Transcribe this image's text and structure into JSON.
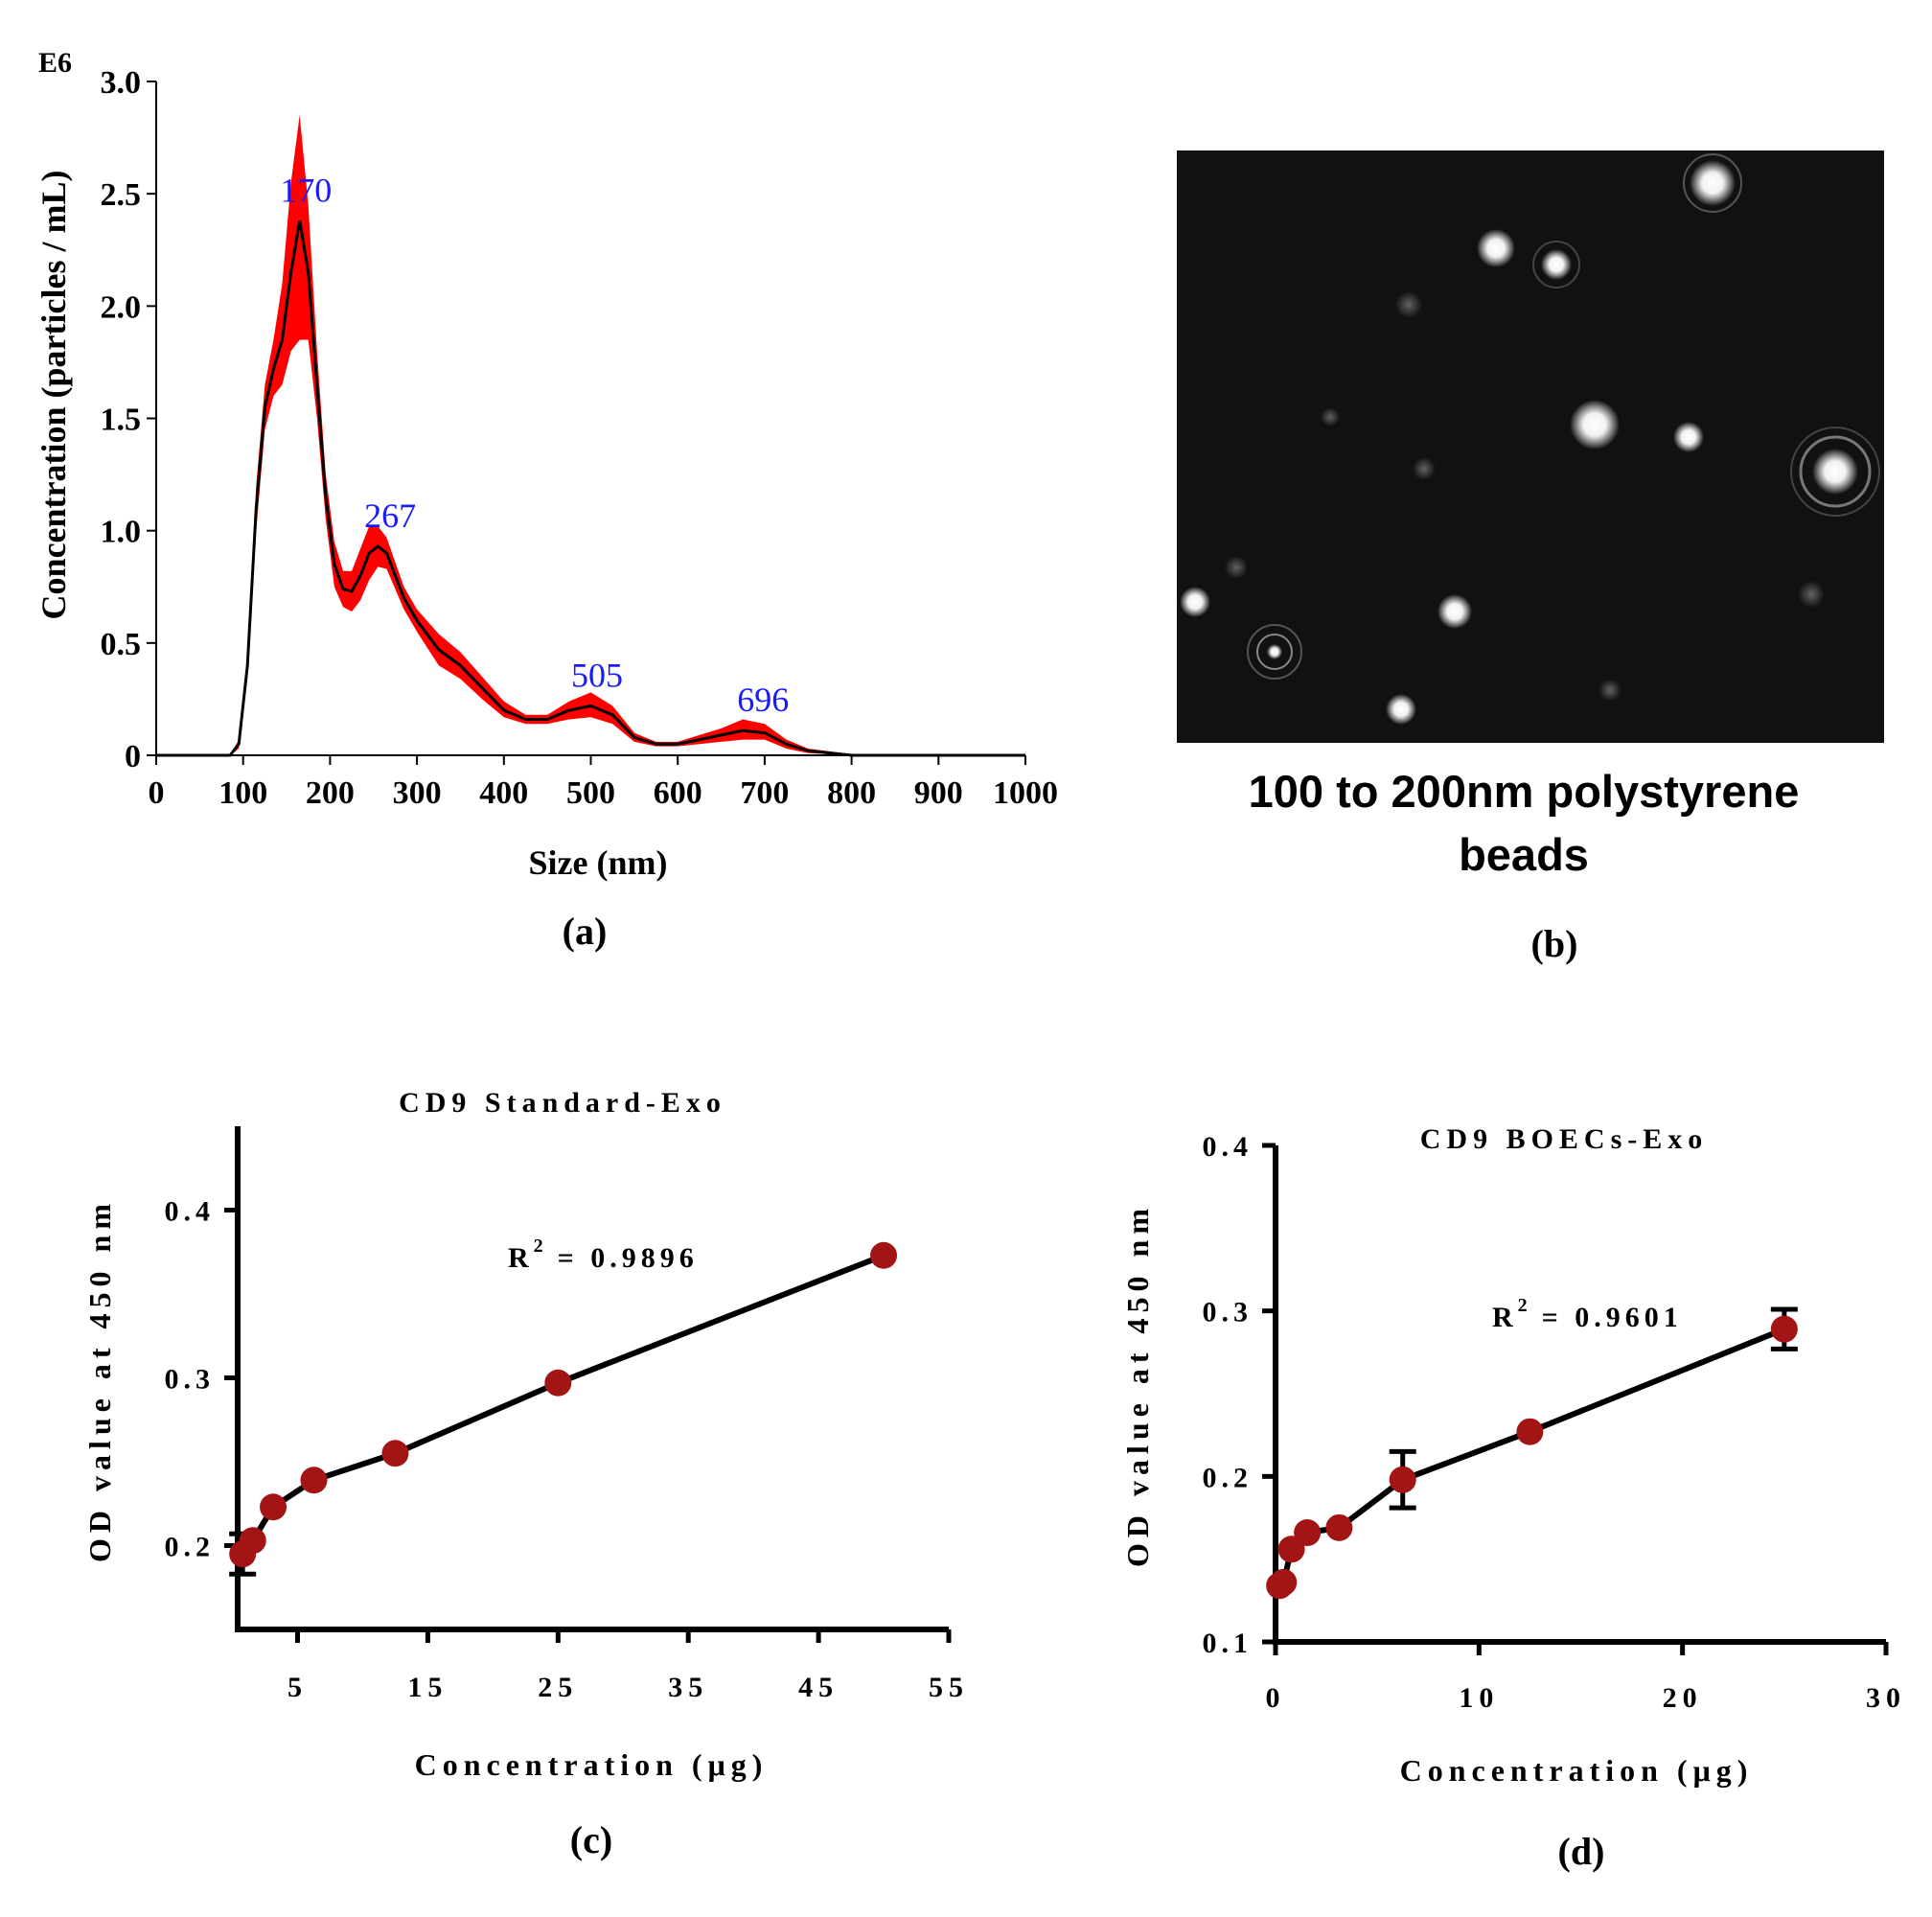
{
  "panel_a": {
    "caption": "(a)",
    "chart_data": {
      "type": "area",
      "x_tick_labels": [
        "0",
        "100",
        "200",
        "300",
        "400",
        "500",
        "600",
        "700",
        "800",
        "900",
        "1000"
      ],
      "y_tick_labels": [
        "0",
        "0.5",
        "1.0",
        "1.5",
        "2.0",
        "2.5",
        "3.0"
      ],
      "y_multiplier": "E6",
      "xlabel": "Size (nm)",
      "ylabel": "Concentration (particles / mL)",
      "xlim": [
        0,
        1000
      ],
      "ylim": [
        0,
        3.0
      ],
      "peak_labels": [
        {
          "x": 170,
          "y": 2.38,
          "text": "170"
        },
        {
          "x": 267,
          "y": 0.93,
          "text": "267"
        },
        {
          "x": 505,
          "y": 0.22,
          "text": "505"
        },
        {
          "x": 696,
          "y": 0.11,
          "text": "696"
        }
      ],
      "series": [
        {
          "type": "mean-line",
          "color": "#000000",
          "x": [
            0,
            85,
            95,
            105,
            115,
            125,
            135,
            145,
            155,
            165,
            175,
            185,
            195,
            205,
            215,
            225,
            235,
            245,
            255,
            265,
            275,
            285,
            300,
            325,
            350,
            375,
            400,
            425,
            450,
            475,
            500,
            525,
            550,
            575,
            600,
            625,
            650,
            675,
            700,
            725,
            750,
            800,
            1000
          ],
          "y": [
            0,
            0,
            0.05,
            0.4,
            1.1,
            1.55,
            1.72,
            1.85,
            2.15,
            2.38,
            2.15,
            1.65,
            1.15,
            0.85,
            0.74,
            0.73,
            0.8,
            0.9,
            0.93,
            0.9,
            0.8,
            0.7,
            0.6,
            0.47,
            0.4,
            0.3,
            0.2,
            0.16,
            0.16,
            0.2,
            0.22,
            0.18,
            0.08,
            0.05,
            0.05,
            0.07,
            0.09,
            0.11,
            0.1,
            0.05,
            0.02,
            0,
            0
          ]
        },
        {
          "type": "error-band",
          "color": "#ff0000",
          "upper": [
            0,
            0,
            0.07,
            0.45,
            1.2,
            1.65,
            1.85,
            2.1,
            2.55,
            2.85,
            2.45,
            1.8,
            1.25,
            0.95,
            0.82,
            0.82,
            0.92,
            1.02,
            1.02,
            0.97,
            0.86,
            0.75,
            0.65,
            0.54,
            0.46,
            0.35,
            0.24,
            0.18,
            0.18,
            0.24,
            0.28,
            0.22,
            0.1,
            0.06,
            0.06,
            0.09,
            0.12,
            0.16,
            0.14,
            0.07,
            0.03,
            0.005,
            0
          ],
          "lower": [
            0,
            0,
            0.03,
            0.35,
            1.0,
            1.45,
            1.6,
            1.65,
            1.8,
            1.85,
            1.85,
            1.5,
            1.05,
            0.75,
            0.66,
            0.64,
            0.69,
            0.78,
            0.84,
            0.83,
            0.74,
            0.65,
            0.55,
            0.4,
            0.34,
            0.25,
            0.17,
            0.14,
            0.14,
            0.16,
            0.17,
            0.14,
            0.06,
            0.04,
            0.04,
            0.05,
            0.06,
            0.07,
            0.07,
            0.03,
            0.01,
            0,
            0
          ]
        }
      ]
    }
  },
  "panel_b": {
    "caption": "(b)",
    "image_caption_line1": "100 to 200nm polystyrene",
    "image_caption_line2": "beads",
    "background": "#111111"
  },
  "panel_c": {
    "caption": "(c)",
    "chart_data": {
      "type": "line",
      "title": "CD9 Standard-Exo",
      "xlabel": "Concentration (μg)",
      "ylabel": "OD value at 450 nm",
      "x_tick_labels": [
        "5",
        "15",
        "25",
        "35",
        "45",
        "55"
      ],
      "y_tick_labels": [
        "0.2",
        "0.3",
        "0.4"
      ],
      "xlim": [
        0.4,
        55
      ],
      "ylim": [
        0.15,
        0.45
      ],
      "r2_label": "R",
      "r2_sup": "2",
      "r2_value": "= 0.9896",
      "point_color": "#a31515",
      "series": [
        {
          "x": [
            0.78,
            1.56,
            3.125,
            6.25,
            12.5,
            25,
            50
          ],
          "y": [
            0.195,
            0.203,
            0.223,
            0.239,
            0.255,
            0.297,
            0.373
          ],
          "error": [
            0.012,
            0,
            0,
            0,
            0,
            0,
            0
          ]
        }
      ]
    }
  },
  "panel_d": {
    "caption": "(d)",
    "chart_data": {
      "type": "line",
      "title": "CD9 BOECs-Exo",
      "xlabel": "Concentration (μg)",
      "ylabel": "OD value at 450 nm",
      "x_tick_labels": [
        "0",
        "10",
        "20",
        "30"
      ],
      "y_tick_labels": [
        "0.1",
        "0.2",
        "0.3",
        "0.4"
      ],
      "xlim": [
        0,
        30
      ],
      "ylim": [
        0.1,
        0.4
      ],
      "r2_label": "R",
      "r2_sup": "2",
      "r2_value": "= 0.9601",
      "point_color": "#a31515",
      "series": [
        {
          "x": [
            0.195,
            0.39,
            0.78,
            1.56,
            3.125,
            6.25,
            12.5,
            25
          ],
          "y": [
            0.134,
            0.136,
            0.156,
            0.166,
            0.169,
            0.198,
            0.227,
            0.289
          ],
          "error": [
            0,
            0,
            0,
            0,
            0,
            0.017,
            0,
            0.012
          ]
        }
      ]
    }
  }
}
